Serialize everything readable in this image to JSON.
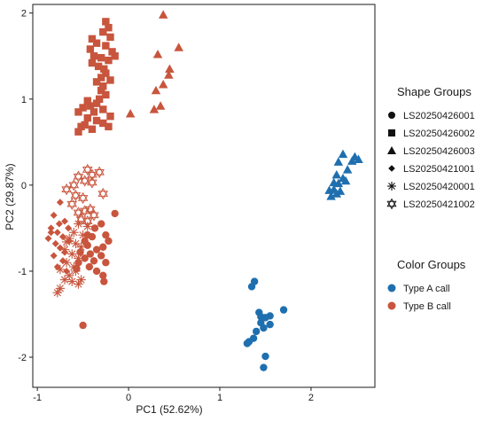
{
  "chart_data": {
    "type": "scatter",
    "title": "",
    "xlabel": "PC1 (52.62%)",
    "ylabel": "PC2 (29.87%)",
    "xlim": [
      -1.05,
      2.7
    ],
    "ylim": [
      -2.35,
      2.1
    ],
    "xticks": [
      -1,
      0,
      1,
      2
    ],
    "yticks": [
      -2,
      -1,
      0,
      1,
      2
    ],
    "grid": false,
    "legend_placement": "right",
    "legend": {
      "shape_title": "Shape Groups",
      "shapes": [
        {
          "label": "LS20250426001",
          "shape": "circle"
        },
        {
          "label": "LS20250426002",
          "shape": "square"
        },
        {
          "label": "LS20250426003",
          "shape": "triangle"
        },
        {
          "label": "LS20250421001",
          "shape": "diamond"
        },
        {
          "label": "LS20250420001",
          "shape": "asterisk"
        },
        {
          "label": "LS20250421002",
          "shape": "star-of-david"
        }
      ],
      "color_title": "Color Groups",
      "colors": [
        {
          "label": "Type A call",
          "color": "#1f6faf"
        },
        {
          "label": "Type B call",
          "color": "#c8553d"
        }
      ]
    },
    "series": [
      {
        "shape": "circle",
        "color": "#1f6faf",
        "points": [
          [
            1.38,
            -1.12
          ],
          [
            1.35,
            -1.18
          ],
          [
            1.55,
            -1.52
          ],
          [
            1.5,
            -1.54
          ],
          [
            1.7,
            -1.45
          ],
          [
            1.55,
            -1.62
          ],
          [
            1.43,
            -1.48
          ],
          [
            1.45,
            -1.6
          ],
          [
            1.48,
            -1.66
          ],
          [
            1.4,
            -1.7
          ],
          [
            1.37,
            -1.78
          ],
          [
            1.32,
            -1.82
          ],
          [
            1.5,
            -1.99
          ],
          [
            1.48,
            -2.12
          ],
          [
            1.3,
            -1.84
          ],
          [
            1.45,
            -1.53
          ]
        ]
      },
      {
        "shape": "triangle",
        "color": "#1f6faf",
        "points": [
          [
            2.35,
            0.36
          ],
          [
            2.48,
            0.33
          ],
          [
            2.52,
            0.3
          ],
          [
            2.45,
            0.28
          ],
          [
            2.3,
            0.27
          ],
          [
            2.4,
            0.18
          ],
          [
            2.28,
            0.12
          ],
          [
            2.35,
            0.08
          ],
          [
            2.3,
            0.02
          ],
          [
            2.25,
            -0.05
          ],
          [
            2.28,
            -0.1
          ],
          [
            2.22,
            -0.13
          ],
          [
            2.2,
            -0.06
          ],
          [
            2.32,
            -0.07
          ],
          [
            2.38,
            0.05
          ],
          [
            2.25,
            0.03
          ]
        ]
      },
      {
        "shape": "circle",
        "color": "#c8553d",
        "points": [
          [
            -0.15,
            -0.33
          ],
          [
            -0.3,
            -0.45
          ],
          [
            -0.37,
            -0.5
          ],
          [
            -0.25,
            -0.58
          ],
          [
            -0.4,
            -0.6
          ],
          [
            -0.48,
            -0.65
          ],
          [
            -0.22,
            -0.65
          ],
          [
            -0.45,
            -0.7
          ],
          [
            -0.28,
            -0.72
          ],
          [
            -0.35,
            -0.75
          ],
          [
            -0.53,
            -0.78
          ],
          [
            -0.42,
            -0.8
          ],
          [
            -0.3,
            -0.82
          ],
          [
            -0.48,
            -0.85
          ],
          [
            -0.38,
            -0.88
          ],
          [
            -0.25,
            -0.9
          ],
          [
            -0.43,
            -0.95
          ],
          [
            -0.57,
            -0.97
          ],
          [
            -0.35,
            -1.0
          ],
          [
            -0.28,
            -1.05
          ],
          [
            -0.55,
            -0.9
          ],
          [
            -0.45,
            -0.58
          ],
          [
            -0.27,
            -1.12
          ],
          [
            -0.5,
            -1.63
          ]
        ]
      },
      {
        "shape": "square",
        "color": "#c8553d",
        "points": [
          [
            -0.25,
            1.9
          ],
          [
            -0.22,
            1.83
          ],
          [
            -0.28,
            1.78
          ],
          [
            -0.2,
            1.72
          ],
          [
            -0.35,
            1.65
          ],
          [
            -0.25,
            1.62
          ],
          [
            -0.42,
            1.58
          ],
          [
            -0.18,
            1.55
          ],
          [
            -0.38,
            1.5
          ],
          [
            -0.3,
            1.48
          ],
          [
            -0.22,
            1.45
          ],
          [
            -0.4,
            1.42
          ],
          [
            -0.33,
            1.38
          ],
          [
            -0.27,
            1.35
          ],
          [
            -0.25,
            1.3
          ],
          [
            -0.3,
            1.25
          ],
          [
            -0.2,
            1.22
          ],
          [
            -0.35,
            1.2
          ],
          [
            -0.28,
            1.15
          ],
          [
            -0.3,
            1.1
          ],
          [
            -0.25,
            1.05
          ],
          [
            -0.32,
            1.0
          ],
          [
            -0.45,
            0.98
          ],
          [
            -0.35,
            0.95
          ],
          [
            -0.42,
            0.92
          ],
          [
            -0.5,
            0.9
          ],
          [
            -0.28,
            0.88
          ],
          [
            -0.38,
            0.85
          ],
          [
            -0.55,
            0.85
          ],
          [
            -0.2,
            0.8
          ],
          [
            -0.45,
            0.78
          ],
          [
            -0.35,
            0.75
          ],
          [
            -0.28,
            0.72
          ],
          [
            -0.48,
            0.7
          ],
          [
            -0.22,
            0.68
          ],
          [
            -0.4,
            0.65
          ],
          [
            -0.52,
            0.68
          ],
          [
            -0.4,
            1.7
          ],
          [
            -0.55,
            0.62
          ],
          [
            -0.15,
            1.5
          ]
        ]
      },
      {
        "shape": "triangle",
        "color": "#c8553d",
        "points": [
          [
            0.38,
            1.98
          ],
          [
            0.55,
            1.6
          ],
          [
            0.32,
            1.52
          ],
          [
            0.45,
            1.35
          ],
          [
            0.38,
            1.17
          ],
          [
            0.3,
            1.1
          ],
          [
            0.35,
            0.92
          ],
          [
            0.28,
            0.88
          ],
          [
            0.02,
            0.83
          ],
          [
            0.44,
            1.28
          ]
        ]
      },
      {
        "shape": "diamond",
        "color": "#c8553d",
        "points": [
          [
            -0.75,
            -0.2
          ],
          [
            -0.82,
            -0.35
          ],
          [
            -0.7,
            -0.42
          ],
          [
            -0.85,
            -0.5
          ],
          [
            -0.78,
            -0.55
          ],
          [
            -0.72,
            -0.6
          ],
          [
            -0.88,
            -0.62
          ],
          [
            -0.65,
            -0.65
          ],
          [
            -0.8,
            -0.68
          ],
          [
            -0.75,
            -0.73
          ],
          [
            -0.7,
            -0.78
          ],
          [
            -0.82,
            -0.82
          ],
          [
            -0.72,
            -0.88
          ],
          [
            -0.78,
            -0.95
          ],
          [
            -0.68,
            -1.0
          ],
          [
            -0.76,
            -0.45
          ],
          [
            -0.85,
            -0.55
          ],
          [
            -0.66,
            -0.5
          ]
        ]
      },
      {
        "shape": "asterisk",
        "color": "#c8553d",
        "points": [
          [
            -0.55,
            -0.45
          ],
          [
            -0.45,
            -0.48
          ],
          [
            -0.6,
            -0.55
          ],
          [
            -0.5,
            -0.58
          ],
          [
            -0.65,
            -0.62
          ],
          [
            -0.58,
            -0.68
          ],
          [
            -0.52,
            -0.72
          ],
          [
            -0.7,
            -0.75
          ],
          [
            -0.62,
            -0.8
          ],
          [
            -0.55,
            -0.85
          ],
          [
            -0.68,
            -0.9
          ],
          [
            -0.75,
            -0.98
          ],
          [
            -0.58,
            -1.0
          ],
          [
            -0.65,
            -1.05
          ],
          [
            -0.7,
            -1.1
          ],
          [
            -0.62,
            -1.12
          ],
          [
            -0.55,
            -1.15
          ],
          [
            -0.75,
            -1.2
          ],
          [
            -0.78,
            -1.25
          ],
          [
            -0.52,
            -1.1
          ],
          [
            -0.6,
            -0.95
          ],
          [
            -0.68,
            -0.66
          ]
        ]
      },
      {
        "shape": "star-of-david",
        "color": "#c8553d",
        "points": [
          [
            -0.45,
            0.18
          ],
          [
            -0.32,
            0.15
          ],
          [
            -0.55,
            0.1
          ],
          [
            -0.48,
            0.05
          ],
          [
            -0.6,
            0.0
          ],
          [
            -0.68,
            -0.05
          ],
          [
            -0.4,
            0.03
          ],
          [
            -0.58,
            -0.12
          ],
          [
            -0.5,
            -0.15
          ],
          [
            -0.62,
            -0.22
          ],
          [
            -0.48,
            -0.3
          ],
          [
            -0.55,
            -0.32
          ],
          [
            -0.42,
            -0.28
          ],
          [
            -0.38,
            -0.35
          ],
          [
            -0.52,
            -0.4
          ],
          [
            -0.45,
            -0.42
          ],
          [
            -0.28,
            -0.1
          ],
          [
            -0.4,
            0.12
          ]
        ]
      }
    ]
  }
}
